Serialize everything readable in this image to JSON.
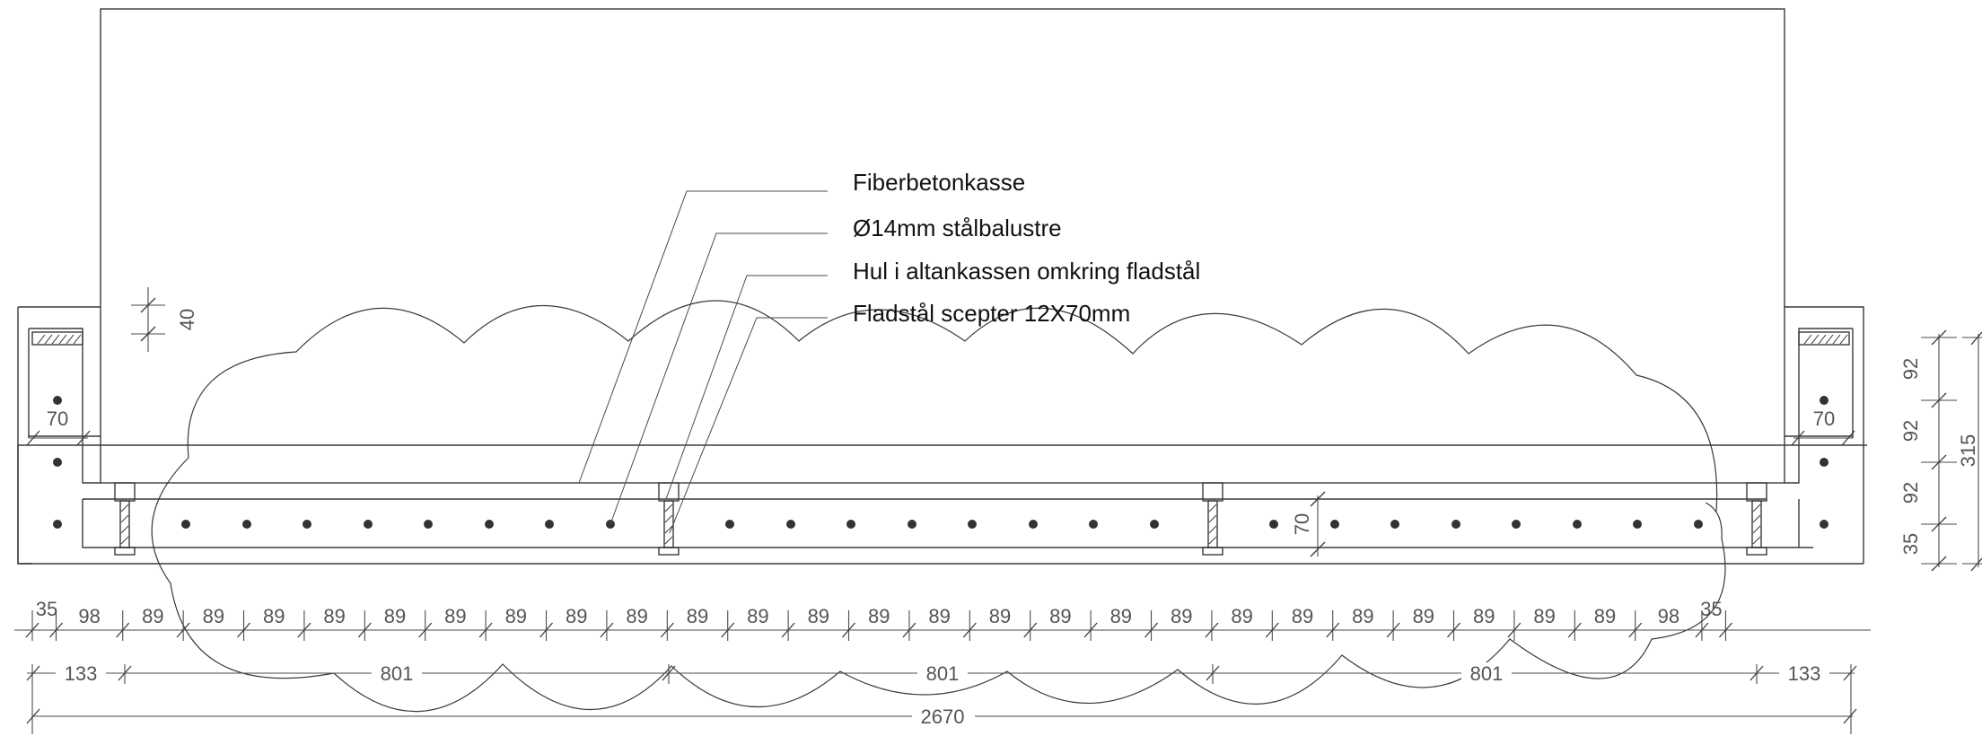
{
  "annotations": {
    "fiber": "Fiberbetonkasse",
    "baluster": "Ø14mm stålbalustre",
    "hole": "Hul i altankassen omkring fladstål",
    "scepter": "Fladstål scepter 12X70mm"
  },
  "dimensions": {
    "top_row": [
      "35",
      "98",
      "89",
      "89",
      "89",
      "89",
      "89",
      "89",
      "89",
      "89",
      "89",
      "89",
      "89",
      "89",
      "89",
      "89",
      "89",
      "89",
      "89",
      "89",
      "89",
      "89",
      "89",
      "89",
      "89",
      "89",
      "89",
      "98",
      "35"
    ],
    "mid_row": [
      "133",
      "801",
      "801",
      "801",
      "133"
    ],
    "total": "2670",
    "right_column": [
      "92",
      "92",
      "92",
      "35"
    ],
    "right_total": "315",
    "left_70": "70",
    "right_70": "70",
    "inner_70": "70",
    "top_40": "40"
  }
}
